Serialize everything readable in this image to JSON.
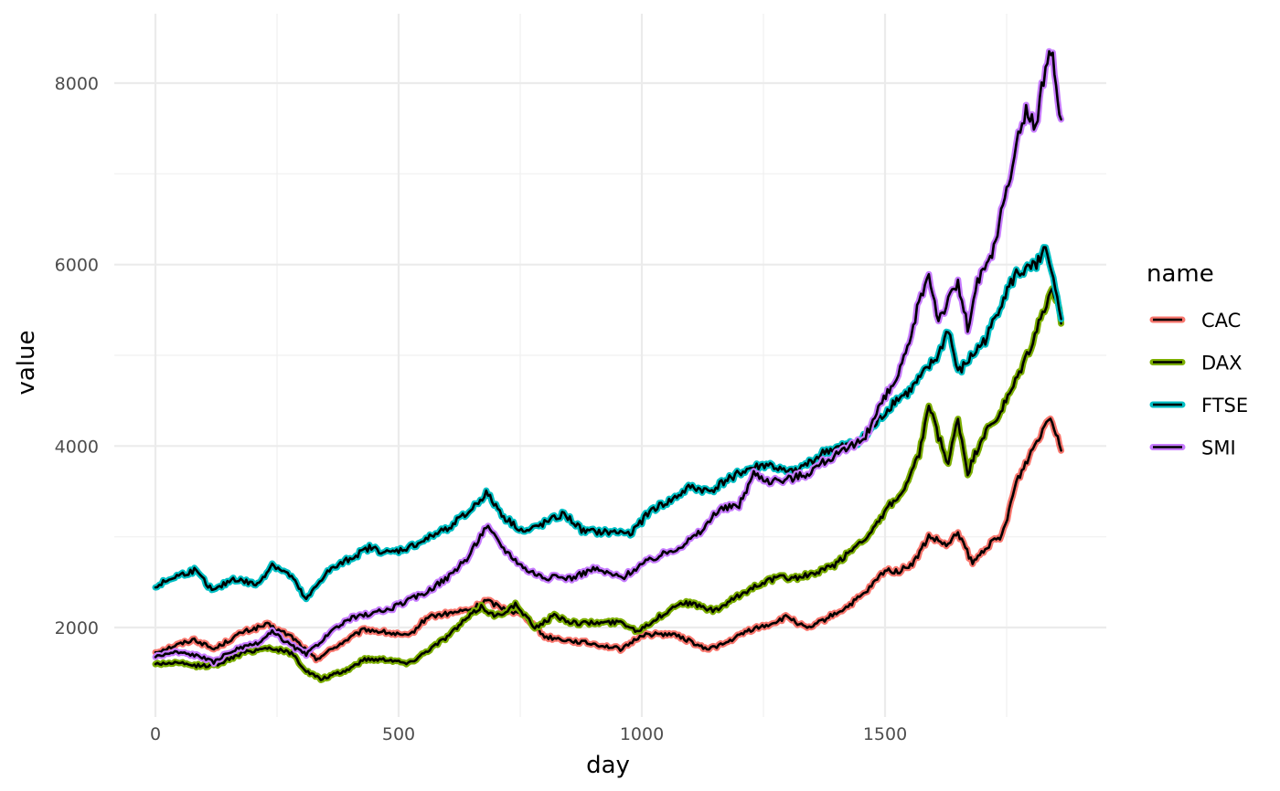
{
  "chart_data": {
    "type": "line",
    "xlabel": "day",
    "ylabel": "value",
    "xlim": [
      0,
      1860
    ],
    "ylim": [
      1000,
      8500
    ],
    "x_ticks": [
      0,
      500,
      1000,
      1500
    ],
    "y_ticks": [
      2000,
      4000,
      6000,
      8000
    ],
    "x_tick_labels": [
      "0",
      "500",
      "1000",
      "1500"
    ],
    "y_tick_labels": [
      "2000",
      "4000",
      "6000",
      "8000"
    ],
    "grid": true,
    "legend": {
      "title": "name",
      "position": "right"
    },
    "series": [
      {
        "name": "CAC",
        "color": "#F8766D",
        "points": [
          [
            0,
            1730
          ],
          [
            40,
            1800
          ],
          [
            80,
            1870
          ],
          [
            120,
            1760
          ],
          [
            180,
            1950
          ],
          [
            230,
            2030
          ],
          [
            280,
            1900
          ],
          [
            330,
            1650
          ],
          [
            380,
            1820
          ],
          [
            430,
            1980
          ],
          [
            470,
            1950
          ],
          [
            520,
            1900
          ],
          [
            560,
            2120
          ],
          [
            600,
            2150
          ],
          [
            650,
            2200
          ],
          [
            680,
            2300
          ],
          [
            720,
            2200
          ],
          [
            760,
            2130
          ],
          [
            800,
            1900
          ],
          [
            860,
            1850
          ],
          [
            900,
            1820
          ],
          [
            960,
            1760
          ],
          [
            1000,
            1920
          ],
          [
            1060,
            1930
          ],
          [
            1100,
            1850
          ],
          [
            1130,
            1760
          ],
          [
            1170,
            1820
          ],
          [
            1220,
            1970
          ],
          [
            1260,
            2030
          ],
          [
            1300,
            2120
          ],
          [
            1340,
            1980
          ],
          [
            1380,
            2100
          ],
          [
            1420,
            2220
          ],
          [
            1460,
            2380
          ],
          [
            1500,
            2630
          ],
          [
            1530,
            2620
          ],
          [
            1560,
            2720
          ],
          [
            1590,
            3000
          ],
          [
            1610,
            2950
          ],
          [
            1630,
            2900
          ],
          [
            1650,
            3050
          ],
          [
            1680,
            2700
          ],
          [
            1710,
            2900
          ],
          [
            1740,
            3000
          ],
          [
            1770,
            3600
          ],
          [
            1800,
            3930
          ],
          [
            1840,
            4350
          ],
          [
            1855,
            4100
          ],
          [
            1862,
            3950
          ]
        ]
      },
      {
        "name": "DAX",
        "color": "#7CAE00",
        "points": [
          [
            0,
            1600
          ],
          [
            40,
            1610
          ],
          [
            80,
            1580
          ],
          [
            120,
            1580
          ],
          [
            180,
            1720
          ],
          [
            230,
            1780
          ],
          [
            280,
            1720
          ],
          [
            310,
            1520
          ],
          [
            340,
            1430
          ],
          [
            390,
            1520
          ],
          [
            430,
            1650
          ],
          [
            480,
            1650
          ],
          [
            520,
            1600
          ],
          [
            560,
            1750
          ],
          [
            600,
            1900
          ],
          [
            640,
            2100
          ],
          [
            670,
            2230
          ],
          [
            700,
            2120
          ],
          [
            740,
            2250
          ],
          [
            780,
            2000
          ],
          [
            820,
            2130
          ],
          [
            860,
            2050
          ],
          [
            900,
            2050
          ],
          [
            960,
            2060
          ],
          [
            990,
            1960
          ],
          [
            1040,
            2130
          ],
          [
            1080,
            2280
          ],
          [
            1110,
            2250
          ],
          [
            1150,
            2180
          ],
          [
            1200,
            2350
          ],
          [
            1240,
            2480
          ],
          [
            1280,
            2550
          ],
          [
            1320,
            2550
          ],
          [
            1360,
            2600
          ],
          [
            1400,
            2700
          ],
          [
            1440,
            2900
          ],
          [
            1480,
            3100
          ],
          [
            1510,
            3350
          ],
          [
            1540,
            3500
          ],
          [
            1570,
            3900
          ],
          [
            1590,
            4450
          ],
          [
            1610,
            4100
          ],
          [
            1630,
            3800
          ],
          [
            1650,
            4300
          ],
          [
            1670,
            3700
          ],
          [
            1700,
            4100
          ],
          [
            1730,
            4300
          ],
          [
            1760,
            4600
          ],
          [
            1800,
            5100
          ],
          [
            1840,
            5700
          ],
          [
            1855,
            5600
          ],
          [
            1862,
            5350
          ]
        ]
      },
      {
        "name": "FTSE",
        "color": "#00BFC4",
        "points": [
          [
            0,
            2450
          ],
          [
            40,
            2560
          ],
          [
            80,
            2630
          ],
          [
            120,
            2400
          ],
          [
            160,
            2540
          ],
          [
            210,
            2470
          ],
          [
            240,
            2700
          ],
          [
            280,
            2560
          ],
          [
            310,
            2300
          ],
          [
            350,
            2600
          ],
          [
            400,
            2760
          ],
          [
            440,
            2880
          ],
          [
            480,
            2820
          ],
          [
            520,
            2880
          ],
          [
            560,
            2980
          ],
          [
            600,
            3100
          ],
          [
            640,
            3250
          ],
          [
            680,
            3480
          ],
          [
            720,
            3200
          ],
          [
            760,
            3050
          ],
          [
            800,
            3150
          ],
          [
            840,
            3250
          ],
          [
            880,
            3060
          ],
          [
            920,
            3050
          ],
          [
            980,
            3050
          ],
          [
            1020,
            3300
          ],
          [
            1060,
            3400
          ],
          [
            1100,
            3550
          ],
          [
            1140,
            3500
          ],
          [
            1180,
            3650
          ],
          [
            1220,
            3750
          ],
          [
            1260,
            3800
          ],
          [
            1300,
            3700
          ],
          [
            1340,
            3800
          ],
          [
            1380,
            3950
          ],
          [
            1420,
            4000
          ],
          [
            1460,
            4100
          ],
          [
            1490,
            4300
          ],
          [
            1520,
            4500
          ],
          [
            1550,
            4600
          ],
          [
            1580,
            4800
          ],
          [
            1610,
            5000
          ],
          [
            1630,
            5300
          ],
          [
            1650,
            4800
          ],
          [
            1680,
            5000
          ],
          [
            1710,
            5200
          ],
          [
            1740,
            5600
          ],
          [
            1770,
            5900
          ],
          [
            1800,
            5950
          ],
          [
            1830,
            6150
          ],
          [
            1850,
            5700
          ],
          [
            1862,
            5400
          ]
        ]
      },
      {
        "name": "SMI",
        "color": "#C77CFF",
        "points": [
          [
            0,
            1680
          ],
          [
            40,
            1730
          ],
          [
            80,
            1700
          ],
          [
            120,
            1620
          ],
          [
            160,
            1750
          ],
          [
            210,
            1820
          ],
          [
            240,
            1950
          ],
          [
            280,
            1800
          ],
          [
            310,
            1700
          ],
          [
            350,
            1900
          ],
          [
            400,
            2100
          ],
          [
            440,
            2150
          ],
          [
            480,
            2200
          ],
          [
            520,
            2300
          ],
          [
            560,
            2400
          ],
          [
            600,
            2550
          ],
          [
            640,
            2750
          ],
          [
            680,
            3120
          ],
          [
            720,
            2850
          ],
          [
            760,
            2650
          ],
          [
            800,
            2550
          ],
          [
            860,
            2550
          ],
          [
            900,
            2650
          ],
          [
            960,
            2550
          ],
          [
            1000,
            2700
          ],
          [
            1040,
            2800
          ],
          [
            1080,
            2900
          ],
          [
            1120,
            3050
          ],
          [
            1160,
            3300
          ],
          [
            1200,
            3350
          ],
          [
            1230,
            3700
          ],
          [
            1270,
            3600
          ],
          [
            1310,
            3650
          ],
          [
            1340,
            3700
          ],
          [
            1380,
            3850
          ],
          [
            1420,
            3950
          ],
          [
            1460,
            4100
          ],
          [
            1490,
            4450
          ],
          [
            1520,
            4700
          ],
          [
            1550,
            5100
          ],
          [
            1570,
            5600
          ],
          [
            1590,
            5900
          ],
          [
            1610,
            5400
          ],
          [
            1630,
            5600
          ],
          [
            1650,
            5800
          ],
          [
            1670,
            5300
          ],
          [
            1690,
            5800
          ],
          [
            1720,
            6100
          ],
          [
            1750,
            6800
          ],
          [
            1770,
            7300
          ],
          [
            1790,
            7700
          ],
          [
            1810,
            7500
          ],
          [
            1830,
            8200
          ],
          [
            1845,
            8350
          ],
          [
            1855,
            7800
          ],
          [
            1862,
            7600
          ]
        ]
      }
    ]
  }
}
